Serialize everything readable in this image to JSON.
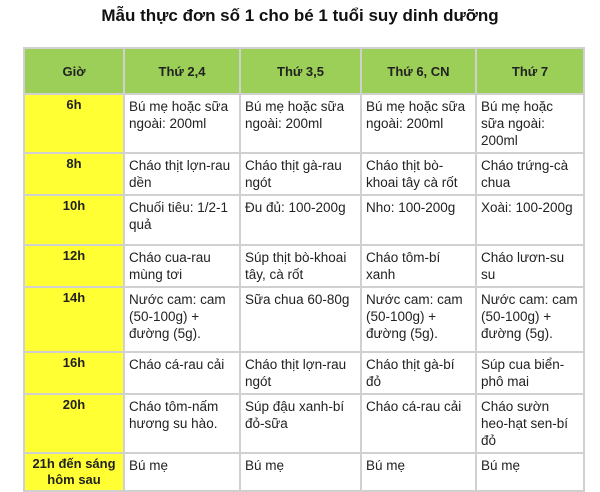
{
  "title": "Mẫu thực đơn số 1 cho bé 1 tuổi suy dinh dưỡng",
  "colors": {
    "header": "#9bcf57",
    "time_column": "#ffff33"
  },
  "headers": [
    "Giờ",
    "Thứ 2,4",
    "Thứ 3,5",
    "Thứ 6, CN",
    "Thứ 7"
  ],
  "rows": [
    {
      "time": "6h",
      "meals": [
        "Bú mẹ hoặc sữa ngoài: 200ml",
        "Bú mẹ hoặc sữa ngoài: 200ml",
        "Bú mẹ hoặc sữa ngoài: 200ml",
        "Bú mẹ hoặc sữa ngoài: 200ml"
      ]
    },
    {
      "time": "8h",
      "meals": [
        "Cháo thịt lợn-rau dền",
        "Cháo thịt gà-rau ngót",
        "Cháo thịt bò-khoai tây cà rốt",
        "Cháo trứng-cà chua"
      ]
    },
    {
      "time": "10h",
      "meals": [
        "Chuối tiêu: 1/2-1 quả",
        "Đu đủ: 100-200g",
        "Nho: 100-200g",
        "Xoài: 100-200g"
      ]
    },
    {
      "time": "12h",
      "meals": [
        "Cháo cua-rau mùng tơi",
        "Súp thịt bò-khoai tây, cà rốt",
        "Cháo tôm-bí xanh",
        "Cháo lươn-su su"
      ]
    },
    {
      "time": "14h",
      "meals": [
        "Nước cam: cam (50-100g) + đường (5g).",
        "Sữa chua 60-80g",
        "Nước cam: cam (50-100g) + đường (5g).",
        "Nước cam: cam (50-100g) + đường (5g)."
      ]
    },
    {
      "time": "16h",
      "meals": [
        "Cháo cá-rau cải",
        "Cháo thịt lợn-rau ngót",
        "Cháo thịt gà-bí đỏ",
        "Súp cua biển-phô mai"
      ]
    },
    {
      "time": "20h",
      "meals": [
        "Cháo tôm-nấm hương su hào.",
        "Súp đậu xanh-bí đỏ-sữa",
        "Cháo cá-rau cải",
        "Cháo sườn heo-hạt sen-bí đỏ"
      ]
    },
    {
      "time": "21h đến sáng hôm sau",
      "meals": [
        "Bú mẹ",
        "Bú mẹ",
        "Bú mẹ",
        "Bú mẹ"
      ]
    }
  ]
}
